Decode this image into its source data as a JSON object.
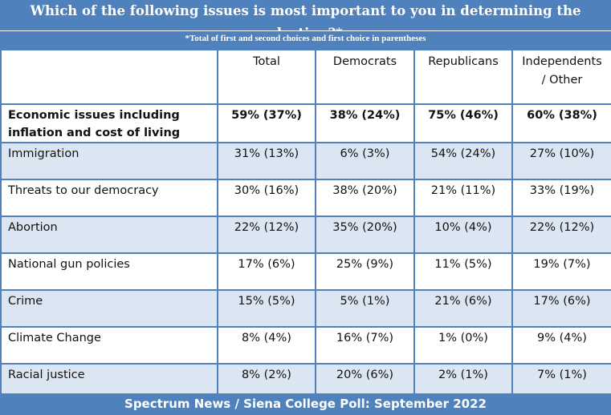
{
  "chart_data": {
    "type": "table",
    "title": "Which of the following issues is most important to you in determining the election?*",
    "subtitle": "*Total of first and second choices and first choice in parentheses",
    "columns": [
      "Total",
      "Democrats",
      "Republicans",
      "Independents / Other"
    ],
    "header_lines": [
      [
        "Total"
      ],
      [
        "Democrats"
      ],
      [
        "Republicans"
      ],
      [
        "Independents",
        "/ Other"
      ]
    ],
    "rows": [
      {
        "label_lines": [
          "Economic issues including",
          "inflation and cost of living"
        ],
        "values": [
          "59% (37%)",
          "38% (24%)",
          "75% (46%)",
          "60% (38%)"
        ]
      },
      {
        "label_lines": [
          "Immigration"
        ],
        "values": [
          "31% (13%)",
          "6% (3%)",
          "54% (24%)",
          "27% (10%)"
        ]
      },
      {
        "label_lines": [
          "Threats to our democracy"
        ],
        "values": [
          "30% (16%)",
          "38% (20%)",
          "21% (11%)",
          "33% (19%)"
        ]
      },
      {
        "label_lines": [
          "Abortion"
        ],
        "values": [
          "22% (12%)",
          "35% (20%)",
          "10% (4%)",
          "22% (12%)"
        ]
      },
      {
        "label_lines": [
          "National gun policies"
        ],
        "values": [
          "17% (6%)",
          "25% (9%)",
          "11% (5%)",
          "19% (7%)"
        ]
      },
      {
        "label_lines": [
          "Crime"
        ],
        "values": [
          "15% (5%)",
          "5% (1%)",
          "21% (6%)",
          "17% (6%)"
        ]
      },
      {
        "label_lines": [
          "Climate Change"
        ],
        "values": [
          "8% (4%)",
          "16% (7%)",
          "1% (0%)",
          "9% (4%)"
        ]
      },
      {
        "label_lines": [
          "Racial justice"
        ],
        "values": [
          "8% (2%)",
          "20% (6%)",
          "2% (1%)",
          "7% (1%)"
        ]
      }
    ],
    "bold_rows": [
      0
    ],
    "alternating_shaded_rows": true
  },
  "footer": "Spectrum News / Siena College Poll: September 2022",
  "colors": {
    "header_blue": "#4f81bd",
    "row_shade": "#dce6f2",
    "grid_line": "#4f81bd",
    "text": "#111111",
    "white": "#ffffff"
  }
}
